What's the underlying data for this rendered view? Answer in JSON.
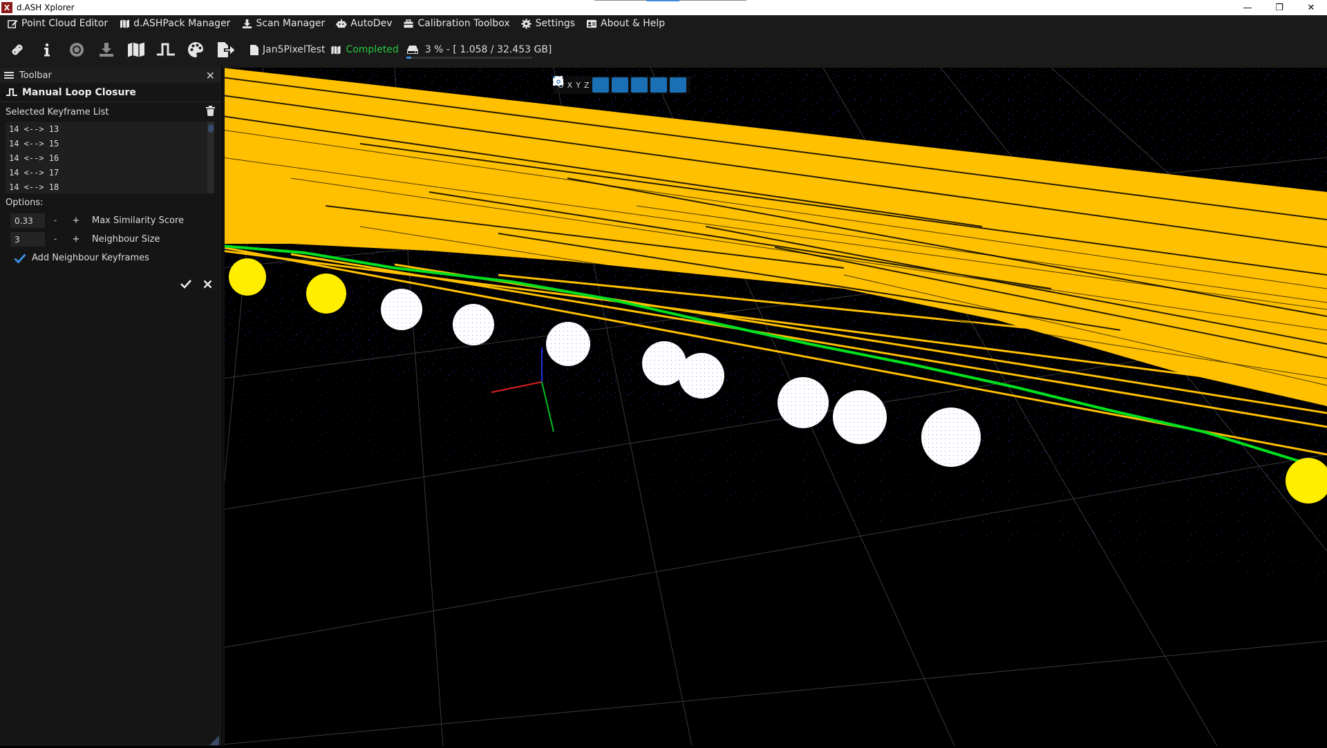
{
  "window": {
    "title": "d.ASH Xplorer",
    "logo_text": "X",
    "controls": {
      "minimize": "—",
      "restore": "❐",
      "close": "✕"
    }
  },
  "menu": [
    {
      "label": "Point Cloud Editor",
      "icon": "edit-icon"
    },
    {
      "label": "d.ASHPack Manager",
      "icon": "map-icon"
    },
    {
      "label": "Scan Manager",
      "icon": "download-icon"
    },
    {
      "label": "AutoDev",
      "icon": "robot-icon"
    },
    {
      "label": "Calibration Toolbox",
      "icon": "toolbox-icon"
    },
    {
      "label": "Settings",
      "icon": "gear-icon"
    },
    {
      "label": "About & Help",
      "icon": "id-card-icon"
    }
  ],
  "toolbar": {
    "buttons": [
      "link-icon",
      "info-icon",
      "record-icon",
      "download-icon",
      "map-icon",
      "loop-closure-icon",
      "palette-icon",
      "export-icon"
    ],
    "project_name": "Jan5PixelTest",
    "status": "Completed",
    "disk_usage": "3 % - [ 1.058 / 32.453 GB]",
    "disk_usage_fraction": 0.03,
    "status_color": "#27c93f"
  },
  "panel": {
    "header": "Toolbar",
    "section_title": "Manual Loop Closure",
    "keyframe_list_label": "Selected Keyframe List",
    "keyframes": [
      "14 <--> 13",
      "14 <--> 15",
      "14 <--> 16",
      "14 <--> 17",
      "14 <--> 18"
    ],
    "options_label": "Options:",
    "max_similarity": {
      "value": "0.33",
      "minus": "-",
      "plus": "+",
      "label": "Max Similarity Score"
    },
    "neighbour_size": {
      "value": "3",
      "minus": "-",
      "plus": "+",
      "label": "Neighbour Size"
    },
    "add_neighbour": {
      "label": "Add Neighbour Keyframes",
      "checked": true
    }
  },
  "view_toolbar": {
    "axes": [
      "O",
      "X",
      "Y",
      "Z"
    ]
  },
  "colors": {
    "accent": "#1a6fb5",
    "trajectory": "#ffc000",
    "path": "#00e020",
    "selected_keyframe": "#ffee00",
    "keyframe": "#ffffff"
  }
}
